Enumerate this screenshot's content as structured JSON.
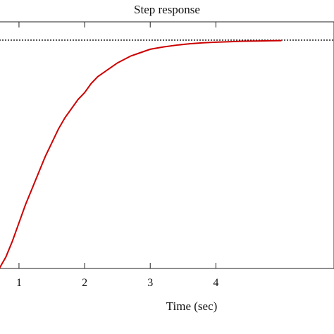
{
  "chart_data": {
    "type": "line",
    "title": "Step response",
    "xlabel": "Time (sec)",
    "ylabel": "",
    "xlim": [
      0.7,
      5.8
    ],
    "ylim": [
      0.0,
      1.08
    ],
    "grid": false,
    "x_ticks": [
      1,
      2,
      3,
      4
    ],
    "x_tick_labels": [
      "1",
      "2",
      "3",
      "4"
    ],
    "reference_line": {
      "y": 1.0,
      "style": "dotted",
      "color": "#000000"
    },
    "series": [
      {
        "color": "#cc0000",
        "x": [
          0.7,
          0.8,
          0.9,
          1.0,
          1.1,
          1.2,
          1.3,
          1.4,
          1.5,
          1.6,
          1.7,
          1.8,
          1.9,
          2.0,
          2.1,
          2.2,
          2.3,
          2.4,
          2.5,
          2.6,
          2.7,
          2.8,
          2.9,
          3.0,
          3.2,
          3.4,
          3.6,
          3.8,
          4.0,
          4.2,
          4.4,
          4.6,
          4.8,
          5.0
        ],
        "y": [
          0.0,
          0.05,
          0.12,
          0.2,
          0.28,
          0.35,
          0.42,
          0.49,
          0.55,
          0.61,
          0.66,
          0.7,
          0.74,
          0.77,
          0.81,
          0.84,
          0.86,
          0.88,
          0.9,
          0.915,
          0.93,
          0.94,
          0.95,
          0.96,
          0.97,
          0.978,
          0.984,
          0.988,
          0.991,
          0.993,
          0.995,
          0.996,
          0.997,
          0.998
        ]
      }
    ]
  }
}
